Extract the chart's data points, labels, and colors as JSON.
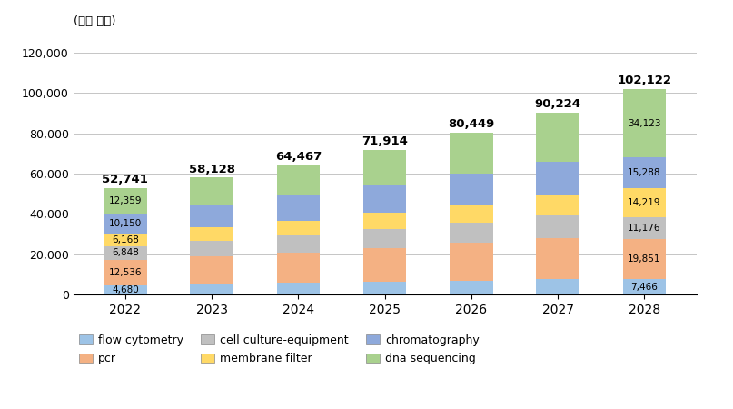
{
  "years": [
    "2022",
    "2023",
    "2024",
    "2025",
    "2026",
    "2027",
    "2028"
  ],
  "totals": [
    52741,
    58128,
    64467,
    71914,
    80449,
    90224,
    102122
  ],
  "series": {
    "flow cytometry": [
      4680,
      5160,
      5690,
      6283,
      6937,
      7657,
      7466
    ],
    "pcr": [
      12536,
      13820,
      15250,
      16830,
      18570,
      20494,
      19851
    ],
    "cell culture-equipment": [
      6848,
      7550,
      8330,
      9194,
      10147,
      11203,
      11176
    ],
    "membrane filter": [
      6168,
      6800,
      7500,
      8278,
      9136,
      10088,
      14219
    ],
    "chromatography": [
      10150,
      11200,
      12360,
      13636,
      15059,
      16617,
      15288
    ],
    "dna sequencing": [
      12359,
      13598,
      15337,
      17693,
      20600,
      24165,
      34123
    ]
  },
  "colors": {
    "flow cytometry": "#9DC3E6",
    "pcr": "#F4B183",
    "cell culture-equipment": "#C0C0C0",
    "membrane filter": "#FFD966",
    "chromatography": "#8EA9DB",
    "dna sequencing": "#A9D18E"
  },
  "legend_order": [
    "flow cytometry",
    "pcr",
    "cell culture-equipment",
    "membrane filter",
    "chromatography",
    "dna sequencing"
  ],
  "ylabel": "(백만 달러)",
  "ylim": [
    0,
    130000
  ],
  "yticks": [
    0,
    20000,
    40000,
    60000,
    80000,
    100000,
    120000
  ],
  "bar_width": 0.5,
  "background_color": "#FFFFFF"
}
